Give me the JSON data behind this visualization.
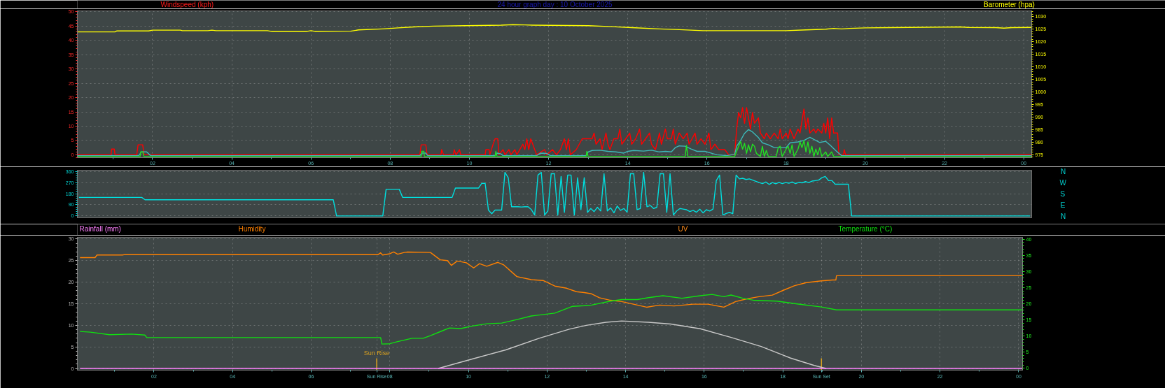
{
  "chart_data": [
    {
      "type": "line",
      "title": "24 hour graph day : 10 October 2025",
      "ylabel": "Windspeed (kph)",
      "y2label": "Barometer (hpa)",
      "xlim": [
        "2025-10-10T00:06",
        "2025-10-11T00:12"
      ],
      "xticks": [
        {
          "value": "2025-10-10T02:00",
          "label": "02"
        },
        {
          "value": "2025-10-10T04:00",
          "label": "04"
        },
        {
          "value": "2025-10-10T06:00",
          "label": "06"
        },
        {
          "value": "2025-10-10T08:00",
          "label": "08"
        },
        {
          "value": "2025-10-10T10:00",
          "label": "10"
        },
        {
          "value": "2025-10-10T12:00",
          "label": "12"
        },
        {
          "value": "2025-10-10T14:00",
          "label": "14"
        },
        {
          "value": "2025-10-10T16:00",
          "label": "16"
        },
        {
          "value": "2025-10-10T18:00",
          "label": "18"
        },
        {
          "value": "2025-10-10T20:00",
          "label": "20"
        },
        {
          "value": "2025-10-10T22:00",
          "label": "22"
        },
        {
          "value": "2025-10-11T00:00",
          "label": "00"
        }
      ],
      "ylim": [
        -1,
        50.3
      ],
      "yticks": [
        0,
        5,
        10,
        15,
        20,
        25,
        30,
        35,
        40,
        45,
        50
      ],
      "y2lim": [
        973.8,
        1032.3
      ],
      "y2ticks": [
        975,
        980,
        985,
        990,
        995,
        1000,
        1005,
        1010,
        1015,
        1020,
        1025,
        1030
      ],
      "grid": true,
      "series": [
        {
          "color": "#ff0000",
          "x": [
            "2025-10-10T00:06",
            "2025-10-10T00:57",
            "2025-10-10T00:58",
            "2025-10-10T01:02",
            "2025-10-10T01:03",
            "2025-10-10T01:36",
            "2025-10-10T01:38",
            "2025-10-10T01:45",
            "2025-10-10T01:47",
            "2025-10-10T08:45",
            "2025-10-10T08:47",
            "2025-10-10T08:54",
            "2025-10-10T08:56",
            "2025-10-10T09:17",
            "2025-10-10T09:18",
            "2025-10-10T09:21",
            "2025-10-10T09:36",
            "2025-10-10T09:37",
            "2025-10-10T09:40",
            "2025-10-10T09:45",
            "2025-10-10T09:47",
            "2025-10-10T10:24",
            "2025-10-10T10:25",
            "2025-10-10T10:30",
            "2025-10-10T10:31",
            "2025-10-10T10:36",
            "2025-10-10T10:39",
            "2025-10-10T10:43",
            "2025-10-10T10:45",
            "2025-10-10T10:51",
            "2025-10-10T10:54",
            "2025-10-10T11:00",
            "2025-10-10T11:03",
            "2025-10-10T11:09",
            "2025-10-10T11:12",
            "2025-10-10T11:21",
            "2025-10-10T11:24",
            "2025-10-10T11:27",
            "2025-10-10T11:30",
            "2025-10-10T11:33",
            "2025-10-10T11:36",
            "2025-10-10T11:39",
            "2025-10-10T11:42",
            "2025-10-10T11:54",
            "2025-10-10T11:57",
            "2025-10-10T12:06",
            "2025-10-10T12:12",
            "2025-10-10T12:18",
            "2025-10-10T12:21",
            "2025-10-10T12:24",
            "2025-10-10T12:27",
            "2025-10-10T12:30",
            "2025-10-10T12:33",
            "2025-10-10T12:42",
            "2025-10-10T12:51",
            "2025-10-10T13:06",
            "2025-10-10T13:09",
            "2025-10-10T13:12",
            "2025-10-10T13:18",
            "2025-10-10T13:21",
            "2025-10-10T13:27",
            "2025-10-10T13:30",
            "2025-10-10T13:33",
            "2025-10-10T13:39",
            "2025-10-10T13:45",
            "2025-10-10T13:48",
            "2025-10-10T13:51",
            "2025-10-10T13:57",
            "2025-10-10T14:03",
            "2025-10-10T14:06",
            "2025-10-10T14:12",
            "2025-10-10T14:18",
            "2025-10-10T14:21",
            "2025-10-10T14:27",
            "2025-10-10T14:33",
            "2025-10-10T14:36",
            "2025-10-10T14:42",
            "2025-10-10T14:48",
            "2025-10-10T14:51",
            "2025-10-10T14:57",
            "2025-10-10T15:00",
            "2025-10-10T15:06",
            "2025-10-10T15:09",
            "2025-10-10T15:12",
            "2025-10-10T15:18",
            "2025-10-10T15:24",
            "2025-10-10T15:30",
            "2025-10-10T15:33",
            "2025-10-10T15:42",
            "2025-10-10T15:45",
            "2025-10-10T15:51",
            "2025-10-10T15:57",
            "2025-10-10T16:03",
            "2025-10-10T16:06",
            "2025-10-10T16:12",
            "2025-10-10T16:18",
            "2025-10-10T16:27",
            "2025-10-10T16:33",
            "2025-10-10T16:42",
            "2025-10-10T16:45",
            "2025-10-10T16:48",
            "2025-10-10T16:51",
            "2025-10-10T16:54",
            "2025-10-10T16:57",
            "2025-10-10T17:00",
            "2025-10-10T17:03",
            "2025-10-10T17:06",
            "2025-10-10T17:09",
            "2025-10-10T17:12",
            "2025-10-10T17:18",
            "2025-10-10T17:21",
            "2025-10-10T17:27",
            "2025-10-10T17:30",
            "2025-10-10T17:36",
            "2025-10-10T17:42",
            "2025-10-10T17:48",
            "2025-10-10T17:51",
            "2025-10-10T17:54",
            "2025-10-10T18:00",
            "2025-10-10T18:03",
            "2025-10-10T18:06",
            "2025-10-10T18:12",
            "2025-10-10T18:18",
            "2025-10-10T18:21",
            "2025-10-10T18:27",
            "2025-10-10T18:30",
            "2025-10-10T18:33",
            "2025-10-10T18:36",
            "2025-10-10T18:42",
            "2025-10-10T18:45",
            "2025-10-10T18:48",
            "2025-10-10T18:54",
            "2025-10-10T18:57",
            "2025-10-10T19:00",
            "2025-10-10T19:03",
            "2025-10-10T19:06",
            "2025-10-10T19:09",
            "2025-10-10T19:12",
            "2025-10-10T19:18",
            "2025-10-10T19:20",
            "2025-10-10T19:27",
            "2025-10-10T19:28",
            "2025-10-10T19:30",
            "2025-10-11T00:12"
          ],
          "values": [
            0,
            0,
            2,
            2,
            0,
            0,
            3.5,
            3.5,
            0,
            0,
            3.5,
            3.5,
            0,
            0,
            1.8,
            0,
            0,
            1.8,
            0,
            1.8,
            0,
            0,
            1.8,
            1.8,
            0,
            3.7,
            5.6,
            5.6,
            0,
            1.8,
            0,
            1.8,
            0,
            1.8,
            0,
            3.7,
            1.8,
            5.6,
            1.8,
            5.6,
            3.7,
            1.8,
            0,
            1.8,
            0,
            1.8,
            0,
            1.8,
            3.7,
            5.6,
            1.8,
            5.6,
            0,
            1.8,
            5.6,
            5.6,
            7.6,
            3.7,
            5.6,
            1.8,
            7.6,
            3.7,
            1.8,
            5.6,
            5.6,
            9.0,
            3.7,
            5.6,
            7.6,
            3.7,
            5.6,
            9.0,
            3.7,
            5.6,
            7.6,
            3.7,
            1.8,
            7.6,
            3.7,
            9.0,
            5.6,
            5.6,
            9.0,
            3.7,
            7.6,
            5.6,
            7.6,
            3.7,
            7.6,
            3.7,
            5.6,
            3.7,
            7.6,
            1.8,
            3.7,
            1.8,
            1.8,
            0,
            0,
            9.0,
            14.8,
            12.9,
            16.5,
            11.0,
            16.5,
            12.9,
            9.0,
            14.8,
            11.0,
            12.9,
            7.6,
            5.6,
            7.6,
            5.6,
            7.6,
            5.6,
            9.0,
            5.6,
            7.6,
            5.6,
            9.0,
            5.6,
            9.0,
            7.6,
            16.0,
            9.0,
            12.9,
            7.6,
            9.0,
            7.6,
            9.0,
            7.6,
            11.0,
            7.6,
            12.9,
            5.6,
            12.9,
            7.6,
            7.6,
            0,
            0,
            1.8,
            0,
            0
          ]
        },
        {
          "color": "#3cb8b8",
          "x": [
            "2025-10-10T00:06",
            "2025-10-10T01:39",
            "2025-10-10T01:43",
            "2025-10-10T01:51",
            "2025-10-10T01:57",
            "2025-10-10T08:45",
            "2025-10-10T08:48",
            "2025-10-10T08:54",
            "2025-10-10T08:57",
            "2025-10-10T10:39",
            "2025-10-10T10:42",
            "2025-10-10T10:48",
            "2025-10-10T10:51",
            "2025-10-10T11:42",
            "2025-10-10T11:48",
            "2025-10-10T11:57",
            "2025-10-10T12:03",
            "2025-10-10T12:57",
            "2025-10-10T13:00",
            "2025-10-10T13:06",
            "2025-10-10T13:18",
            "2025-10-10T13:30",
            "2025-10-10T13:42",
            "2025-10-10T13:54",
            "2025-10-10T14:00",
            "2025-10-10T14:09",
            "2025-10-10T14:24",
            "2025-10-10T14:36",
            "2025-10-10T14:48",
            "2025-10-10T14:57",
            "2025-10-10T15:06",
            "2025-10-10T15:12",
            "2025-10-10T15:18",
            "2025-10-10T15:27",
            "2025-10-10T15:36",
            "2025-10-10T15:45",
            "2025-10-10T15:57",
            "2025-10-10T16:06",
            "2025-10-10T16:15",
            "2025-10-10T16:30",
            "2025-10-10T16:42",
            "2025-10-10T16:45",
            "2025-10-10T16:51",
            "2025-10-10T16:57",
            "2025-10-10T17:03",
            "2025-10-10T17:09",
            "2025-10-10T17:18",
            "2025-10-10T17:24",
            "2025-10-10T17:33",
            "2025-10-10T17:42",
            "2025-10-10T18:00",
            "2025-10-10T18:06",
            "2025-10-10T18:18",
            "2025-10-10T18:27",
            "2025-10-10T18:36",
            "2025-10-10T18:45",
            "2025-10-10T18:51",
            "2025-10-10T19:00",
            "2025-10-10T19:06",
            "2025-10-10T19:15",
            "2025-10-10T19:24",
            "2025-10-11T00:12"
          ],
          "values": [
            -0.3,
            -0.3,
            1.0,
            1.0,
            -0.3,
            -0.3,
            0.6,
            0.6,
            -0.3,
            -0.3,
            0.6,
            0.3,
            -0.3,
            -0.3,
            0.6,
            0.5,
            -0.3,
            -0.3,
            1.0,
            1.5,
            1.6,
            1.2,
            1.0,
            0.6,
            1.2,
            1.5,
            1.3,
            1.6,
            1.0,
            1.2,
            1.0,
            2.5,
            3.1,
            3.0,
            2.0,
            1.2,
            1.2,
            0.6,
            0.0,
            -0.3,
            0.2,
            3.0,
            5.0,
            7.5,
            8.8,
            8.0,
            6.0,
            4.2,
            3.5,
            2.5,
            2.5,
            4.2,
            4.5,
            5.0,
            6.1,
            5.0,
            4.3,
            4.7,
            3.5,
            1.5,
            -0.3,
            -0.3
          ]
        },
        {
          "color": "#22e022",
          "x": [
            "2025-10-10T00:06",
            "2025-10-10T01:41",
            "2025-10-10T01:42",
            "2025-10-10T01:45",
            "2025-10-10T01:47",
            "2025-10-10T08:47",
            "2025-10-10T08:48",
            "2025-10-10T08:51",
            "2025-10-10T08:52",
            "2025-10-10T10:39",
            "2025-10-10T10:40",
            "2025-10-10T10:42",
            "2025-10-10T12:57",
            "2025-10-10T12:58",
            "2025-10-10T13:00",
            "2025-10-10T15:27",
            "2025-10-10T15:29",
            "2025-10-10T15:31",
            "2025-10-10T16:42",
            "2025-10-10T16:48",
            "2025-10-10T16:51",
            "2025-10-10T16:54",
            "2025-10-10T16:57",
            "2025-10-10T17:00",
            "2025-10-10T17:03",
            "2025-10-10T17:06",
            "2025-10-10T17:09",
            "2025-10-10T17:12",
            "2025-10-10T17:15",
            "2025-10-10T17:21",
            "2025-10-10T17:24",
            "2025-10-10T17:27",
            "2025-10-10T17:30",
            "2025-10-10T17:33",
            "2025-10-10T17:45",
            "2025-10-10T17:48",
            "2025-10-10T17:51",
            "2025-10-10T17:54",
            "2025-10-10T18:00",
            "2025-10-10T18:03",
            "2025-10-10T18:06",
            "2025-10-10T18:09",
            "2025-10-10T18:12",
            "2025-10-10T18:18",
            "2025-10-10T18:21",
            "2025-10-10T18:24",
            "2025-10-10T18:27",
            "2025-10-10T18:30",
            "2025-10-10T18:33",
            "2025-10-10T18:36",
            "2025-10-10T18:39",
            "2025-10-10T18:42",
            "2025-10-10T18:45",
            "2025-10-10T18:48",
            "2025-10-10T18:51",
            "2025-10-10T18:54",
            "2025-10-10T19:00",
            "2025-10-10T19:03",
            "2025-10-10T19:09",
            "2025-10-10T19:12",
            "2025-10-11T00:12"
          ],
          "values": [
            -0.6,
            -0.6,
            1.0,
            1.0,
            -0.6,
            -0.6,
            1.2,
            1.2,
            -0.6,
            -0.6,
            1.2,
            -0.6,
            -0.6,
            1.2,
            -0.6,
            -0.6,
            3.3,
            -0.6,
            -0.6,
            3.0,
            4.6,
            2.0,
            4.0,
            0.5,
            3.5,
            1.0,
            3.7,
            3.0,
            0.5,
            -0.6,
            3.0,
            -0.6,
            1.5,
            -0.6,
            -0.6,
            2.5,
            3.0,
            -0.6,
            2.0,
            3.0,
            0.5,
            3.5,
            -0.6,
            2.0,
            4.5,
            2.5,
            5.0,
            1.0,
            4.5,
            0.5,
            3.0,
            -0.6,
            2.0,
            0.0,
            2.5,
            -0.6,
            1.0,
            -0.6,
            1.0,
            -0.6,
            -0.6
          ]
        },
        {
          "color": "#ffff00",
          "axis": "y2",
          "x": [
            "2025-10-10T00:06",
            "2025-10-10T01:03",
            "2025-10-10T01:06",
            "2025-10-10T01:54",
            "2025-10-10T02:00",
            "2025-10-10T02:42",
            "2025-10-10T02:45",
            "2025-10-10T03:24",
            "2025-10-10T03:30",
            "2025-10-10T03:36",
            "2025-10-10T04:54",
            "2025-10-10T05:00",
            "2025-10-10T05:54",
            "2025-10-10T06:00",
            "2025-10-10T06:06",
            "2025-10-10T07:00",
            "2025-10-10T07:12",
            "2025-10-10T07:48",
            "2025-10-10T08:12",
            "2025-10-10T08:36",
            "2025-10-10T09:06",
            "2025-10-10T09:54",
            "2025-10-10T10:48",
            "2025-10-10T11:06",
            "2025-10-10T11:24",
            "2025-10-10T11:36",
            "2025-10-10T13:00",
            "2025-10-10T13:36",
            "2025-10-10T14:06",
            "2025-10-10T14:48",
            "2025-10-10T15:18",
            "2025-10-10T15:54",
            "2025-10-10T18:00",
            "2025-10-10T18:30",
            "2025-10-10T19:00",
            "2025-10-10T19:12",
            "2025-10-10T19:24",
            "2025-10-10T19:36",
            "2025-10-10T20:00",
            "2025-10-10T21:06",
            "2025-10-10T22:24",
            "2025-10-10T22:36",
            "2025-10-10T23:18",
            "2025-10-10T23:30",
            "2025-10-10T23:42",
            "2025-10-11T00:12"
          ],
          "values": [
            1023.9,
            1023.9,
            1024.3,
            1024.3,
            1024.6,
            1024.6,
            1024.4,
            1024.4,
            1024.6,
            1024.4,
            1024.4,
            1024.1,
            1024.1,
            1024.4,
            1024.1,
            1024.2,
            1024.7,
            1025.1,
            1025.5,
            1025.9,
            1026.2,
            1026.4,
            1026.6,
            1026.8,
            1026.7,
            1026.6,
            1026.4,
            1026.0,
            1025.6,
            1025.1,
            1024.8,
            1024.4,
            1024.4,
            1024.7,
            1025.0,
            1025.3,
            1025.1,
            1025.3,
            1025.5,
            1025.7,
            1025.9,
            1025.7,
            1025.6,
            1025.4,
            1025.6,
            1025.7
          ]
        }
      ]
    },
    {
      "type": "line",
      "annotations": [
        "N",
        "W",
        "S",
        "E",
        "N"
      ],
      "categories": [
        null,
        null,
        null,
        null,
        null,
        null,
        null,
        null,
        null,
        null,
        null,
        null,
        null,
        null,
        null,
        null,
        null,
        null,
        null,
        null,
        null,
        null,
        null,
        null,
        null,
        null,
        null,
        null,
        null,
        null,
        null,
        null,
        null,
        null,
        null,
        null,
        null,
        null,
        null,
        null,
        null,
        null,
        null,
        null,
        null,
        null,
        null,
        null,
        null,
        null,
        null,
        null,
        null,
        null,
        null,
        null,
        null,
        null,
        null,
        null,
        null,
        null,
        null,
        null,
        null,
        null,
        null,
        null,
        null,
        null,
        null,
        null,
        null,
        null,
        null,
        null,
        null,
        null,
        null,
        null,
        null,
        null,
        null,
        null,
        null,
        null,
        null,
        null,
        null,
        null,
        null,
        null,
        null,
        null,
        null,
        null,
        null,
        null,
        null,
        null,
        null,
        null,
        null,
        null,
        null,
        null,
        null,
        null,
        null,
        null,
        null,
        null,
        null,
        null,
        null,
        null,
        null,
        null,
        null,
        null,
        null,
        null,
        null,
        null,
        null,
        null,
        null,
        null,
        null,
        null,
        null,
        null,
        null,
        null,
        null,
        null,
        null,
        null,
        null,
        null,
        null,
        null,
        null,
        null,
        null,
        null,
        null,
        null,
        null,
        null,
        null,
        null,
        null,
        null,
        null,
        null,
        null,
        null,
        null,
        null,
        null,
        null,
        null,
        null,
        null,
        null,
        null,
        null,
        null,
        null,
        null,
        null,
        null,
        null,
        null,
        null,
        null,
        null,
        null,
        null,
        null,
        null,
        null,
        null,
        null,
        null,
        null,
        null,
        null,
        null,
        null,
        null,
        null,
        null,
        null,
        null,
        null,
        null,
        null,
        null,
        null,
        null,
        null,
        null,
        null,
        null,
        null,
        null,
        null,
        null,
        null,
        null,
        null,
        null,
        null,
        null,
        null,
        null,
        null,
        null,
        null,
        null,
        null,
        null,
        null,
        null,
        null,
        null,
        null,
        null,
        null,
        null,
        null,
        null,
        null,
        null,
        null,
        null,
        null,
        null,
        null,
        null,
        null,
        null,
        null,
        null,
        null,
        null,
        null,
        null,
        null,
        null,
        null,
        null,
        null,
        null,
        null,
        null,
        null,
        null,
        null,
        null,
        null,
        null,
        null,
        null,
        null,
        null,
        null,
        null,
        null,
        null,
        null,
        null,
        null,
        null,
        null,
        null,
        null,
        null,
        null,
        null,
        null,
        null,
        null,
        null,
        null,
        null,
        null
      ],
      "ylim": [
        -15,
        370
      ],
      "yticks": [
        0,
        90,
        180,
        270,
        360
      ],
      "grid": "y",
      "series": [
        {
          "color": "#00dede",
          "values": [
            150,
            150,
            150,
            150,
            150,
            150,
            150,
            150,
            150,
            150,
            150,
            150,
            150,
            150,
            150,
            150,
            150,
            150,
            150,
            150,
            131,
            131,
            131,
            131,
            131,
            131,
            131,
            131,
            131,
            131,
            131,
            131,
            131,
            131,
            131,
            131,
            131,
            131,
            131,
            131,
            131,
            131,
            131,
            131,
            131,
            131,
            131,
            131,
            131,
            131,
            131,
            131,
            131,
            131,
            131,
            131,
            131,
            131,
            131,
            131,
            131,
            131,
            131,
            131,
            131,
            131,
            131,
            131,
            131,
            131,
            131,
            131,
            131,
            131,
            131,
            131,
            131,
            131,
            0,
            0,
            0,
            0,
            0,
            0,
            0,
            0,
            0,
            0,
            0,
            0,
            0,
            0,
            0,
            215,
            215,
            215,
            215,
            215,
            150,
            150,
            150,
            150,
            150,
            150,
            150,
            150,
            150,
            150,
            150,
            150,
            150,
            150,
            150,
            150,
            226,
            226,
            226,
            226,
            226,
            226,
            226,
            226,
            264,
            264,
            47,
            18,
            47,
            47,
            47,
            353,
            309,
            74,
            74,
            74,
            72,
            74,
            74,
            51,
            7,
            331,
            353,
            7,
            40,
            342,
            342,
            7,
            320,
            29,
            331,
            331,
            7,
            309,
            51,
            309,
            29,
            60,
            35,
            70,
            40,
            342,
            40,
            65,
            25,
            80,
            45,
            60,
            30,
            342,
            342,
            51,
            60,
            353,
            74,
            85,
            60,
            70,
            342,
            342,
            29,
            342,
            7,
            40,
            60,
            55,
            50,
            35,
            45,
            30,
            55,
            25,
            50,
            40,
            55,
            286,
            331,
            7,
            20,
            29,
            18,
            331,
            300,
            305,
            295,
            300,
            290,
            280,
            270,
            262,
            275,
            255,
            270,
            260,
            272,
            262,
            270,
            265,
            275,
            262,
            272,
            268,
            278,
            270,
            282,
            286,
            290,
            310,
            320,
            286,
            286,
            257,
            257,
            257,
            257,
            257,
            0,
            0,
            0,
            0,
            0,
            0,
            0,
            0,
            0,
            0,
            0,
            0,
            0,
            0,
            0,
            0,
            0,
            0,
            0,
            0,
            0,
            0,
            0,
            0,
            0,
            0,
            0,
            0,
            0,
            0,
            0,
            0,
            0,
            0,
            0,
            0,
            0,
            0,
            0,
            0,
            0,
            0,
            0,
            0,
            0,
            0,
            0,
            0,
            0,
            0,
            0,
            0,
            0,
            0,
            0
          ]
        }
      ]
    },
    {
      "type": "line",
      "annotations": [
        "UV"
      ],
      "xlim": [
        "2025-10-10T00:03",
        "2025-10-11T00:06"
      ],
      "xticks": [
        {
          "value": "2025-10-10T02:00",
          "label": "02"
        },
        {
          "value": "2025-10-10T04:00",
          "label": "04"
        },
        {
          "value": "2025-10-10T06:00",
          "label": "06"
        },
        {
          "value": "2025-10-10T07:40",
          "label": "Sun Rise"
        },
        {
          "value": "2025-10-10T08:00",
          "label": "08"
        },
        {
          "value": "2025-10-10T10:00",
          "label": "10"
        },
        {
          "value": "2025-10-10T12:00",
          "label": "12"
        },
        {
          "value": "2025-10-10T14:00",
          "label": "14"
        },
        {
          "value": "2025-10-10T16:00",
          "label": "16"
        },
        {
          "value": "2025-10-10T18:00",
          "label": "18"
        },
        {
          "value": "2025-10-10T18:59",
          "label": "Sun Set"
        },
        {
          "value": "2025-10-10T20:00",
          "label": "20"
        },
        {
          "value": "2025-10-10T22:00",
          "label": "22"
        },
        {
          "value": "2025-10-11T00:00",
          "label": "00"
        }
      ],
      "ylim": [
        -0.4,
        30.4
      ],
      "yticks": [
        0,
        5,
        10,
        15,
        20,
        25,
        30
      ],
      "y2lim": [
        -0.6,
        40.6
      ],
      "y2ticks": [
        0,
        5,
        10,
        15,
        20,
        25,
        30,
        35,
        40
      ],
      "ref_lines": [
        {
          "axis": "x",
          "value": "2025-10-10T07:40",
          "label": "Sun Rise",
          "color": "#d8a020"
        },
        {
          "axis": "x",
          "value": "2025-10-10T18:59",
          "color": "#d8a020"
        }
      ],
      "grid": true,
      "series": [
        {
          "name": "Humidity",
          "color": "#ff8000",
          "x": [
            "2025-10-10T00:07",
            "2025-10-10T00:30",
            "2025-10-10T00:33",
            "2025-10-10T01:12",
            "2025-10-10T01:15",
            "2025-10-10T07:42",
            "2025-10-10T07:46",
            "2025-10-10T07:49",
            "2025-10-10T08:00",
            "2025-10-10T08:06",
            "2025-10-10T08:12",
            "2025-10-10T08:22",
            "2025-10-10T08:27",
            "2025-10-10T09:02",
            "2025-10-10T09:17",
            "2025-10-10T09:28",
            "2025-10-10T09:34",
            "2025-10-10T09:43",
            "2025-10-10T09:57",
            "2025-10-10T10:08",
            "2025-10-10T10:17",
            "2025-10-10T10:28",
            "2025-10-10T10:45",
            "2025-10-10T10:54",
            "2025-10-10T11:14",
            "2025-10-10T11:36",
            "2025-10-10T11:54",
            "2025-10-10T12:12",
            "2025-10-10T12:30",
            "2025-10-10T12:45",
            "2025-10-10T12:57",
            "2025-10-10T13:08",
            "2025-10-10T13:20",
            "2025-10-10T13:37",
            "2025-10-10T13:54",
            "2025-10-10T14:12",
            "2025-10-10T14:32",
            "2025-10-10T14:52",
            "2025-10-10T15:14",
            "2025-10-10T15:43",
            "2025-10-10T16:06",
            "2025-10-10T16:30",
            "2025-10-10T16:48",
            "2025-10-10T17:04",
            "2025-10-10T17:22",
            "2025-10-10T17:44",
            "2025-10-10T18:02",
            "2025-10-10T18:18",
            "2025-10-10T18:36",
            "2025-10-10T18:59",
            "2025-10-10T19:16",
            "2025-10-10T19:21",
            "2025-10-10T19:22",
            "2025-10-11T00:06"
          ],
          "values": [
            25.7,
            25.7,
            26.3,
            26.3,
            26.4,
            26.4,
            26.8,
            26.3,
            26.6,
            27.0,
            26.5,
            26.9,
            27.0,
            26.9,
            25.2,
            25.0,
            23.9,
            24.9,
            24.5,
            23.3,
            24.3,
            23.7,
            24.6,
            24.0,
            21.3,
            20.6,
            20.4,
            19.1,
            18.6,
            17.8,
            17.6,
            17.3,
            16.4,
            15.8,
            15.5,
            14.9,
            14.2,
            14.7,
            14.5,
            14.9,
            14.9,
            14.2,
            15.5,
            16.1,
            16.6,
            17.0,
            18.2,
            19.2,
            19.9,
            20.3,
            20.5,
            20.5,
            21.5,
            21.5
          ]
        },
        {
          "color": "#c8c8c8",
          "x": [
            "2025-10-10T09:14",
            "2025-10-10T10:06",
            "2025-10-10T10:57",
            "2025-10-10T11:48",
            "2025-10-10T12:34",
            "2025-10-10T13:00",
            "2025-10-10T13:30",
            "2025-10-10T13:54",
            "2025-10-10T14:35",
            "2025-10-10T15:09",
            "2025-10-10T15:54",
            "2025-10-10T16:41",
            "2025-10-10T17:27",
            "2025-10-10T18:12",
            "2025-10-10T18:48",
            "2025-10-10T19:06"
          ],
          "values": [
            0,
            2.2,
            4.3,
            7.0,
            9.1,
            10.0,
            10.7,
            11.0,
            10.7,
            10.3,
            9.2,
            7.2,
            5.1,
            2.4,
            0.7,
            0
          ]
        },
        {
          "name": "Temperature (°C)",
          "color": "#10e010",
          "axis": "y2",
          "x": [
            "2025-10-10T00:07",
            "2025-10-10T00:23",
            "2025-10-10T00:52",
            "2025-10-10T01:26",
            "2025-10-10T01:46",
            "2025-10-10T01:49",
            "2025-10-10T07:46",
            "2025-10-10T07:48",
            "2025-10-10T08:00",
            "2025-10-10T08:11",
            "2025-10-10T08:34",
            "2025-10-10T08:51",
            "2025-10-10T09:02",
            "2025-10-10T09:20",
            "2025-10-10T09:31",
            "2025-10-10T09:48",
            "2025-10-10T10:06",
            "2025-10-10T10:28",
            "2025-10-10T10:51",
            "2025-10-10T11:14",
            "2025-10-10T11:36",
            "2025-10-10T12:12",
            "2025-10-10T12:39",
            "2025-10-10T12:57",
            "2025-10-10T13:08",
            "2025-10-10T13:37",
            "2025-10-10T13:54",
            "2025-10-10T14:18",
            "2025-10-10T14:35",
            "2025-10-10T14:57",
            "2025-10-10T15:26",
            "2025-10-10T15:54",
            "2025-10-10T16:12",
            "2025-10-10T16:30",
            "2025-10-10T16:41",
            "2025-10-10T16:59",
            "2025-10-10T17:15",
            "2025-10-10T17:51",
            "2025-10-10T18:24",
            "2025-10-10T18:59",
            "2025-10-10T19:22",
            "2025-10-11T00:06"
          ],
          "values": [
            11.4,
            11.2,
            10.4,
            10.6,
            10.3,
            9.5,
            9.5,
            7.5,
            7.6,
            8.2,
            9.3,
            9.3,
            10.1,
            11.6,
            12.5,
            12.3,
            13.1,
            13.8,
            14.0,
            15.1,
            16.2,
            17.1,
            19.2,
            19.4,
            19.6,
            20.8,
            21.3,
            21.3,
            21.9,
            22.5,
            21.7,
            22.5,
            22.9,
            22.2,
            22.7,
            21.7,
            21.1,
            20.8,
            19.9,
            19.0,
            18.1,
            18.1
          ]
        },
        {
          "name": "Rainfall (mm)",
          "color": "#ff80ff",
          "x": [
            "2025-10-10T00:07",
            "2025-10-11T00:06"
          ],
          "values": [
            0,
            0
          ]
        }
      ]
    }
  ]
}
